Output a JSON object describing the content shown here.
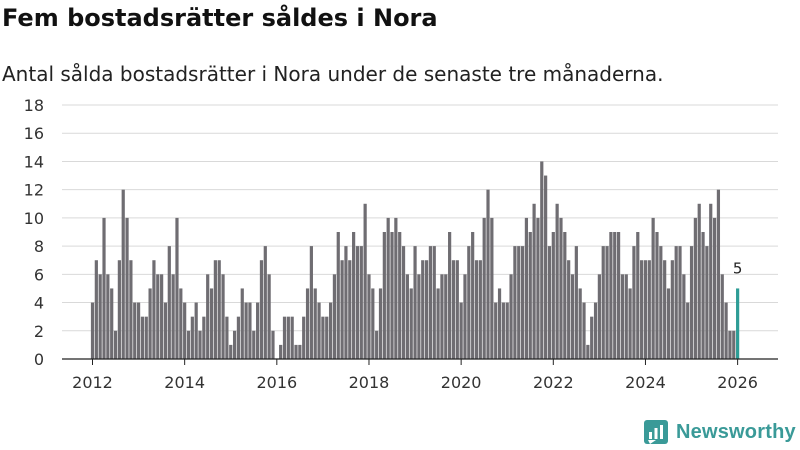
{
  "header": {
    "title": "Fem bostadsrätter såldes i Nora",
    "subtitle": "Antal sålda bostadsrätter i Nora under de senaste tre månaderna."
  },
  "brand": {
    "name": "Newsworthy",
    "color": "#3a9a98",
    "icon": "newsworthy-logo-icon"
  },
  "chart_data": {
    "type": "bar",
    "title": "Fem bostadsrätter såldes i Nora",
    "subtitle": "Antal sålda bostadsrätter i Nora under de senaste tre månaderna.",
    "xlabel": "",
    "ylabel": "",
    "ylim": [
      0,
      18
    ],
    "yticks": [
      0,
      2,
      4,
      6,
      8,
      10,
      12,
      14,
      16,
      18
    ],
    "grid": true,
    "x_start": "2012-01",
    "x_end": "2026-03",
    "xticks": [
      {
        "label": "2012",
        "index": 0
      },
      {
        "label": "2014",
        "index": 24
      },
      {
        "label": "2016",
        "index": 48
      },
      {
        "label": "2018",
        "index": 72
      },
      {
        "label": "2020",
        "index": 96
      },
      {
        "label": "2022",
        "index": 120
      },
      {
        "label": "2024",
        "index": 144
      },
      {
        "label": "2026",
        "index": 168
      }
    ],
    "bar_color": "#6f6d72",
    "highlight_color": "#2e9d96",
    "highlight_label": "5",
    "values": [
      4,
      7,
      6,
      10,
      6,
      5,
      2,
      7,
      12,
      10,
      7,
      4,
      4,
      3,
      3,
      5,
      7,
      6,
      6,
      4,
      8,
      6,
      10,
      5,
      4,
      2,
      3,
      4,
      2,
      3,
      6,
      5,
      7,
      7,
      6,
      3,
      1,
      2,
      3,
      5,
      4,
      4,
      2,
      4,
      7,
      8,
      6,
      2,
      0,
      1,
      3,
      3,
      3,
      1,
      1,
      3,
      5,
      8,
      5,
      4,
      3,
      3,
      4,
      6,
      9,
      7,
      8,
      7,
      9,
      8,
      8,
      11,
      6,
      5,
      2,
      5,
      9,
      10,
      9,
      10,
      9,
      8,
      6,
      5,
      8,
      6,
      7,
      7,
      8,
      8,
      5,
      6,
      6,
      9,
      7,
      7,
      4,
      6,
      8,
      9,
      7,
      7,
      10,
      12,
      10,
      4,
      5,
      4,
      4,
      6,
      8,
      8,
      8,
      10,
      9,
      11,
      10,
      14,
      13,
      8,
      9,
      11,
      10,
      9,
      7,
      6,
      8,
      5,
      4,
      1,
      3,
      4,
      6,
      8,
      8,
      9,
      9,
      9,
      6,
      6,
      5,
      8,
      9,
      7,
      7,
      7,
      10,
      9,
      8,
      7,
      5,
      7,
      8,
      8,
      6,
      4,
      8,
      10,
      11,
      9,
      8,
      11,
      10,
      12,
      6,
      4,
      2,
      2,
      5
    ]
  }
}
